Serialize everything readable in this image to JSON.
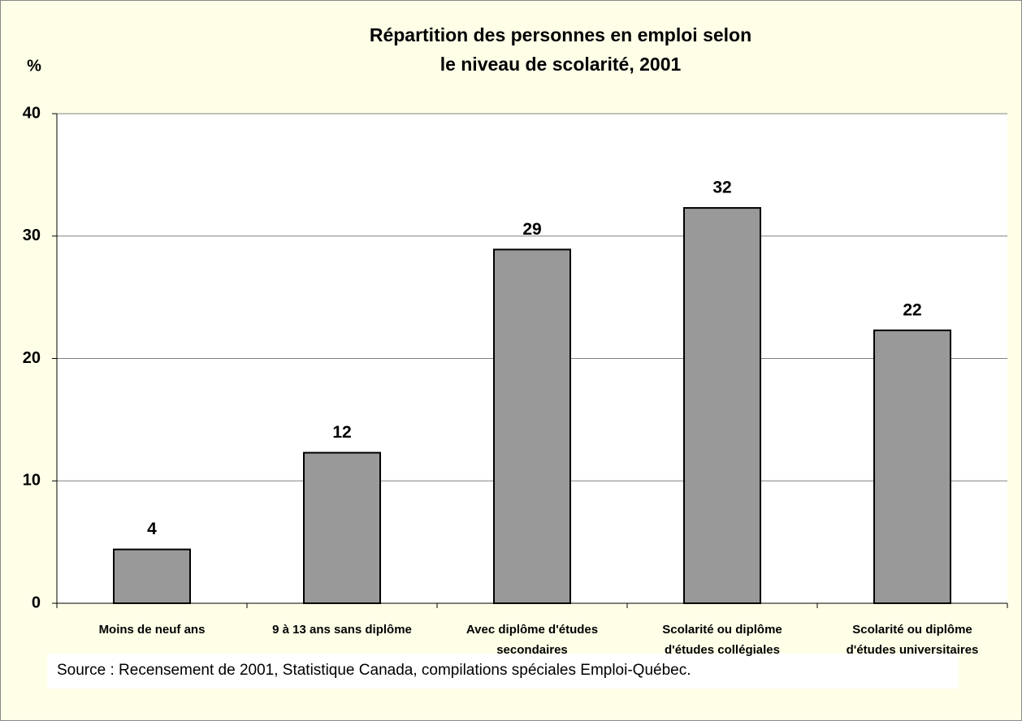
{
  "chart_data": {
    "type": "bar",
    "title": [
      "Répartition des personnes en emploi selon",
      "le niveau de scolarité, 2001"
    ],
    "y_label": "%",
    "categories": [
      [
        "Moins de neuf ans"
      ],
      [
        "9 à 13 ans sans diplôme"
      ],
      [
        "Avec diplôme d'études",
        "secondaires"
      ],
      [
        "Scolarité ou diplôme",
        "d'études collégiales"
      ],
      [
        "Scolarité ou diplôme",
        "d'études universitaires"
      ]
    ],
    "values": [
      4.4,
      12.3,
      28.9,
      32.3,
      22.3
    ],
    "value_labels": [
      "4",
      "12",
      "29",
      "32",
      "22"
    ],
    "color": "#999999",
    "ylim": [
      0,
      40
    ],
    "yticks": [
      0,
      10,
      20,
      30,
      40
    ],
    "grid": true,
    "source": "Source : Recensement de 2001, Statistique Canada, compilations spéciales Emploi-Québec."
  }
}
